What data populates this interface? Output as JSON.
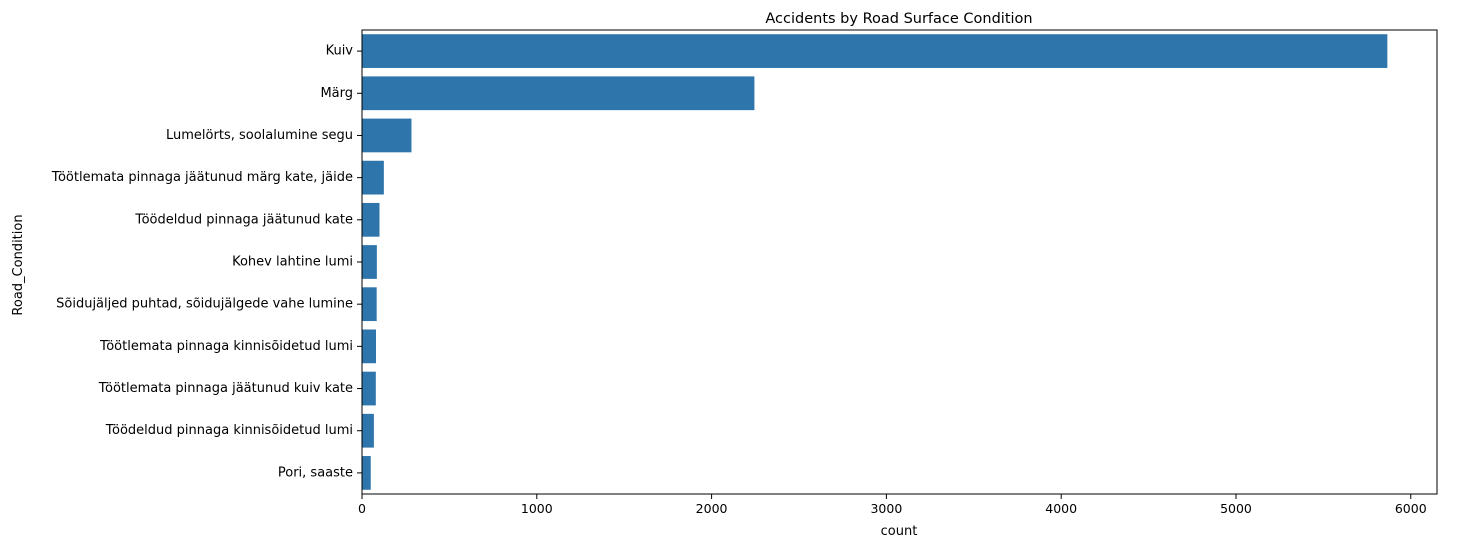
{
  "chart_data": {
    "type": "bar",
    "orientation": "horizontal",
    "title": "Accidents by Road Surface Condition",
    "xlabel": "count",
    "ylabel": "Road_Condition",
    "xlim": [
      0,
      6150
    ],
    "xticks": [
      0,
      1000,
      2000,
      3000,
      4000,
      5000,
      6000
    ],
    "grid": false,
    "bar_color": "#2e75ab",
    "categories": [
      "Kuiv",
      "Märg",
      "Lumelörts, soolalumine segu",
      "Töötlemata pinnaga jäätunud märg kate, jäide",
      "Töödeldud pinnaga jäätunud kate",
      "Kohev lahtine lumi",
      "Sõidujäljed puhtad, sõidujälgede vahe lumine",
      "Töötlemata pinnaga kinnisõidetud lumi",
      "Töötlemata pinnaga jäätunud kuiv kate",
      "Töödeldud pinnaga kinnisõidetud lumi",
      "Pori, saaste"
    ],
    "values": [
      5866,
      2245,
      283,
      125,
      100,
      85,
      84,
      80,
      79,
      68,
      50
    ]
  }
}
